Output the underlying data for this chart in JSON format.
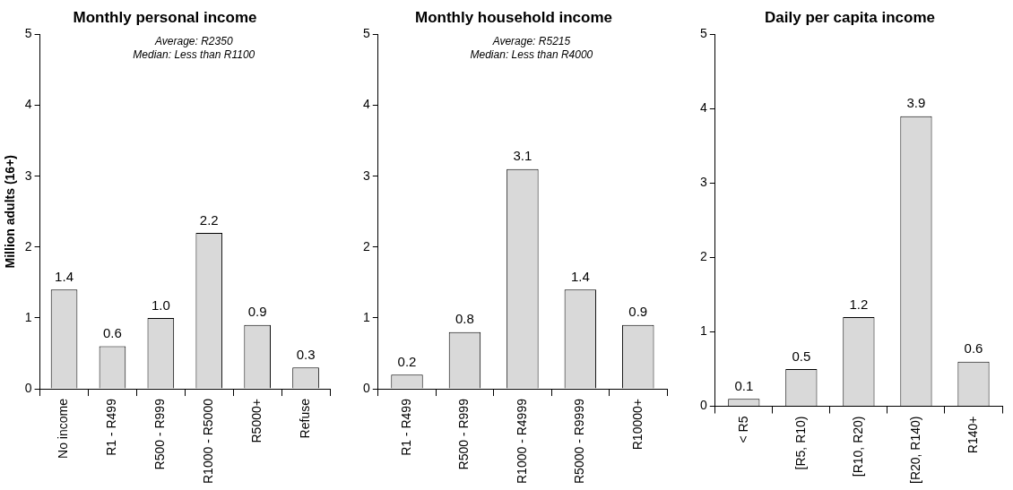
{
  "chart_data": [
    {
      "type": "bar",
      "title": "Monthly personal income",
      "ylabel": "Million adults (16+)",
      "categories": [
        "No income",
        "R1 - R499",
        "R500 - R999",
        "R1000 - R5000",
        "R5000+",
        "Refuse"
      ],
      "values": [
        1.4,
        0.6,
        1.0,
        2.2,
        0.9,
        0.3
      ],
      "value_labels": [
        "1.4",
        "0.6",
        "1.0",
        "2.2",
        "0.9",
        "0.3"
      ],
      "color": "#d9d9d9",
      "ylim": [
        0,
        5
      ],
      "yticks": [
        0,
        1,
        2,
        3,
        4,
        5
      ],
      "grid": false,
      "legend": false,
      "annotations": [
        "Average: R2350",
        "Median: Less than R1100"
      ]
    },
    {
      "type": "bar",
      "title": "Monthly household income",
      "categories": [
        "R1 - R499",
        "R500 - R999",
        "R1000 - R4999",
        "R5000 - R9999",
        "R10000+"
      ],
      "values": [
        0.2,
        0.8,
        3.1,
        1.4,
        0.9
      ],
      "value_labels": [
        "0.2",
        "0.8",
        "3.1",
        "1.4",
        "0.9"
      ],
      "color": "#d9d9d9",
      "ylim": [
        0,
        5
      ],
      "yticks": [
        0,
        1,
        2,
        3,
        4,
        5
      ],
      "grid": false,
      "legend": false,
      "annotations": [
        "Average: R5215",
        "Median: Less than R4000"
      ]
    },
    {
      "type": "bar",
      "title": "Daily per capita income",
      "categories": [
        "< R5",
        "[R5, R10)",
        "[R10, R20)",
        "[R20, R140)",
        "R140+"
      ],
      "values": [
        0.1,
        0.5,
        1.2,
        3.9,
        0.6
      ],
      "value_labels": [
        "0.1",
        "0.5",
        "1.2",
        "3.9",
        "0.6"
      ],
      "color": "#d9d9d9",
      "ylim": [
        0,
        5
      ],
      "yticks": [
        0,
        1,
        2,
        3,
        4,
        5
      ],
      "grid": false,
      "legend": false
    }
  ]
}
